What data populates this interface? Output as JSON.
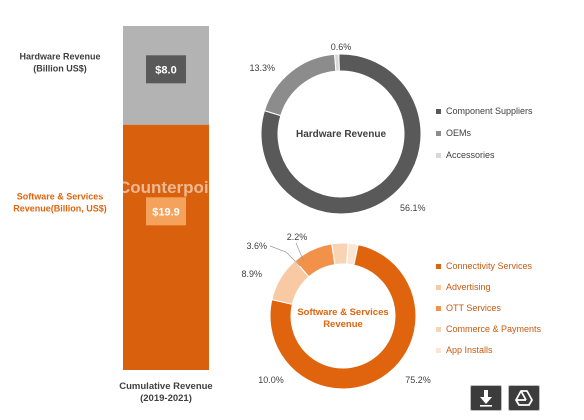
{
  "chart_data": [
    {
      "type": "bar",
      "stacked": true,
      "categories": [
        "Cumulative Revenue (2019-2021)"
      ],
      "xlabel_lines": [
        "Cumulative Revenue",
        "(2019-2021)"
      ],
      "series": [
        {
          "key": "software",
          "label_lines": [
            "Software & Services",
            "Revenue(Billion, US$)"
          ],
          "values": [
            19.9
          ],
          "value_label": "$19.9",
          "color": "#d9610d"
        },
        {
          "key": "hardware",
          "label_lines": [
            "Hardware Revenue",
            "(Billion US$)"
          ],
          "values": [
            8.0
          ],
          "value_label": "$8.0",
          "color": "#b3b3b3"
        }
      ],
      "ylim": [
        0,
        27.9
      ]
    },
    {
      "type": "pie",
      "donut": true,
      "title": "Hardware Revenue",
      "slices": [
        {
          "name": "Component Suppliers",
          "value": 56.1,
          "label": "56.1%",
          "color": "#595959"
        },
        {
          "name": "OEMs",
          "value": 13.3,
          "label": "13.3%",
          "color": "#8c8c8c"
        },
        {
          "name": "Accessories",
          "value": 0.6,
          "label": "0.6%",
          "color": "#d9d9d9"
        }
      ]
    },
    {
      "type": "pie",
      "donut": true,
      "title_lines": [
        "Software & Services",
        "Revenue"
      ],
      "slices": [
        {
          "name": "Connectivity Services",
          "value": 75.2,
          "label": "75.2%",
          "color": "#e0640e"
        },
        {
          "name": "Advertising",
          "value": 10.0,
          "label": "10.0%",
          "color": "#f8c9a3"
        },
        {
          "name": "OTT Services",
          "value": 8.9,
          "label": "8.9%",
          "color": "#f2914a"
        },
        {
          "name": "Commerce & Payments",
          "value": 3.6,
          "label": "3.6%",
          "color": "#f8d4b4"
        },
        {
          "name": "App Installs",
          "value": 2.2,
          "label": "2.2%",
          "color": "#fbe6d6"
        }
      ]
    }
  ],
  "watermark": "Counterpoint",
  "colors": {
    "software_label": "#e0640e",
    "hardware_label": "#404040",
    "hardware_value_box": "#595959",
    "software_value_box": "#f5a25d",
    "sw_legend_text": "#c65a10"
  },
  "toolbar": {
    "download_icon": "download-icon",
    "drive_icon": "google-drive-icon"
  }
}
